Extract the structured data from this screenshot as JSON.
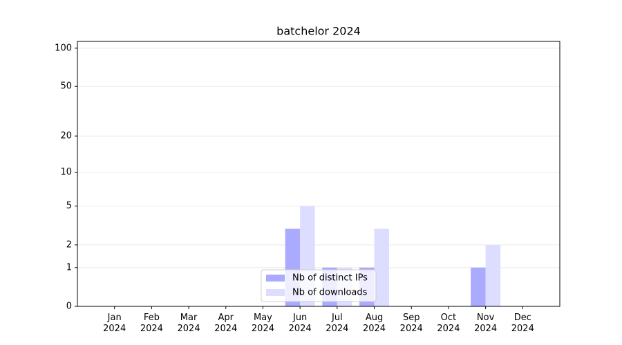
{
  "chart_data": {
    "type": "bar",
    "title": "batchelor 2024",
    "categories": [
      "Jan\n2024",
      "Feb\n2024",
      "Mar\n2024",
      "Apr\n2024",
      "May\n2024",
      "Jun\n2024",
      "Jul\n2024",
      "Aug\n2024",
      "Sep\n2024",
      "Oct\n2024",
      "Nov\n2024",
      "Dec\n2024"
    ],
    "series": [
      {
        "name": "Nb of distinct IPs",
        "color": "#aaaaff",
        "values": [
          0,
          0,
          0,
          0,
          0,
          3,
          1,
          1,
          0,
          0,
          1,
          0
        ]
      },
      {
        "name": "Nb of downloads",
        "color": "#ddddff",
        "values": [
          0,
          0,
          0,
          0,
          0,
          5,
          1,
          3,
          0,
          0,
          2,
          0
        ]
      }
    ],
    "yscale": "log1p",
    "ylim": [
      0,
      113
    ],
    "yticks": [
      0,
      1,
      2,
      5,
      10,
      20,
      50,
      100
    ],
    "grid": true,
    "legend": "lower center"
  }
}
